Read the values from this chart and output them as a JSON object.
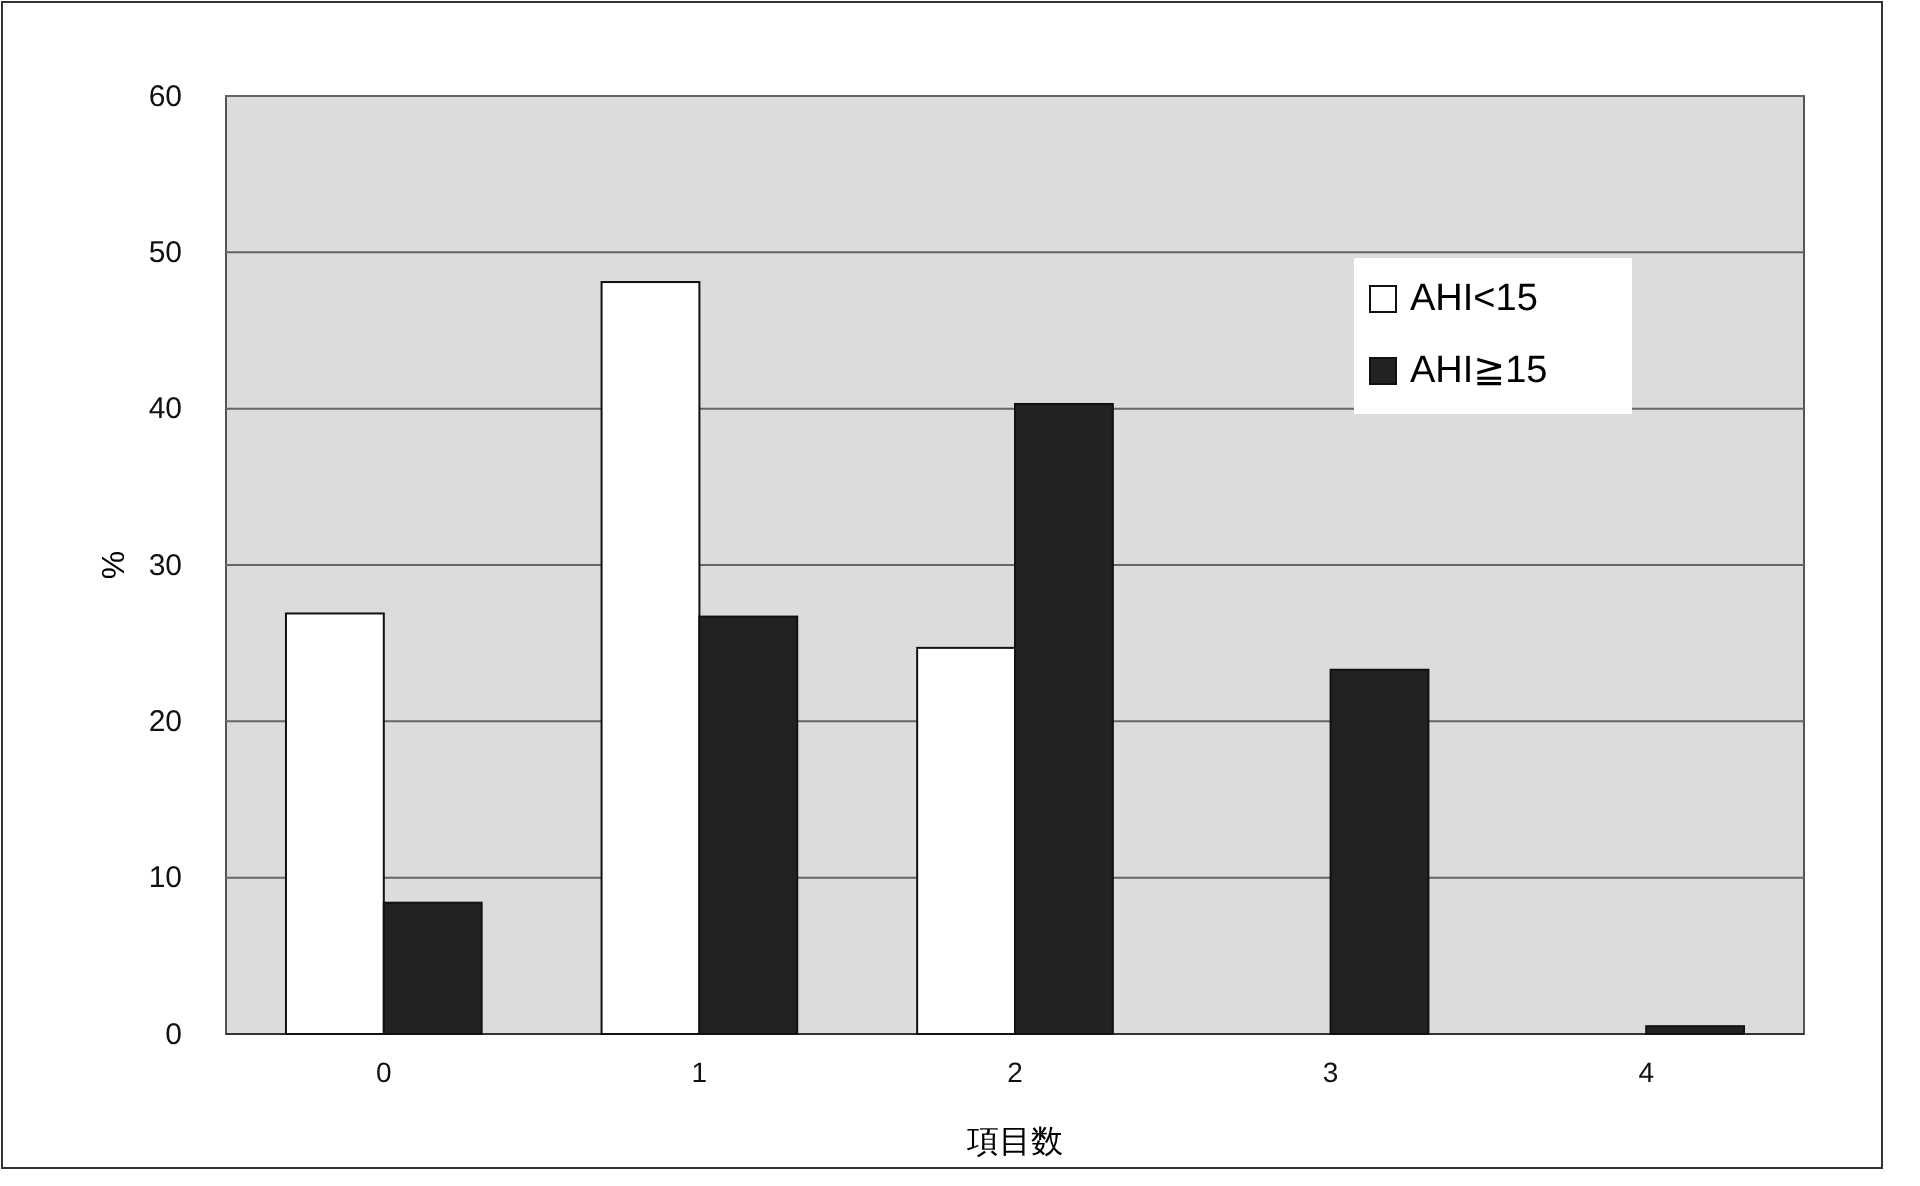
{
  "chart_data": {
    "type": "bar",
    "xlabel": "項目数",
    "ylabel": "%",
    "categories": [
      "0",
      "1",
      "2",
      "3",
      "4"
    ],
    "series": [
      {
        "name": "AHI<15",
        "color": "#ffffff",
        "values": [
          26.9,
          48.1,
          24.7,
          0,
          0
        ]
      },
      {
        "name": "AHI≧15",
        "color": "#222222",
        "values": [
          8.4,
          26.7,
          40.3,
          23.3,
          0.5
        ]
      }
    ],
    "ylim": [
      0,
      60
    ],
    "yticks": [
      0,
      10,
      20,
      30,
      40,
      50,
      60
    ],
    "grid": "y",
    "legend": "top right"
  }
}
